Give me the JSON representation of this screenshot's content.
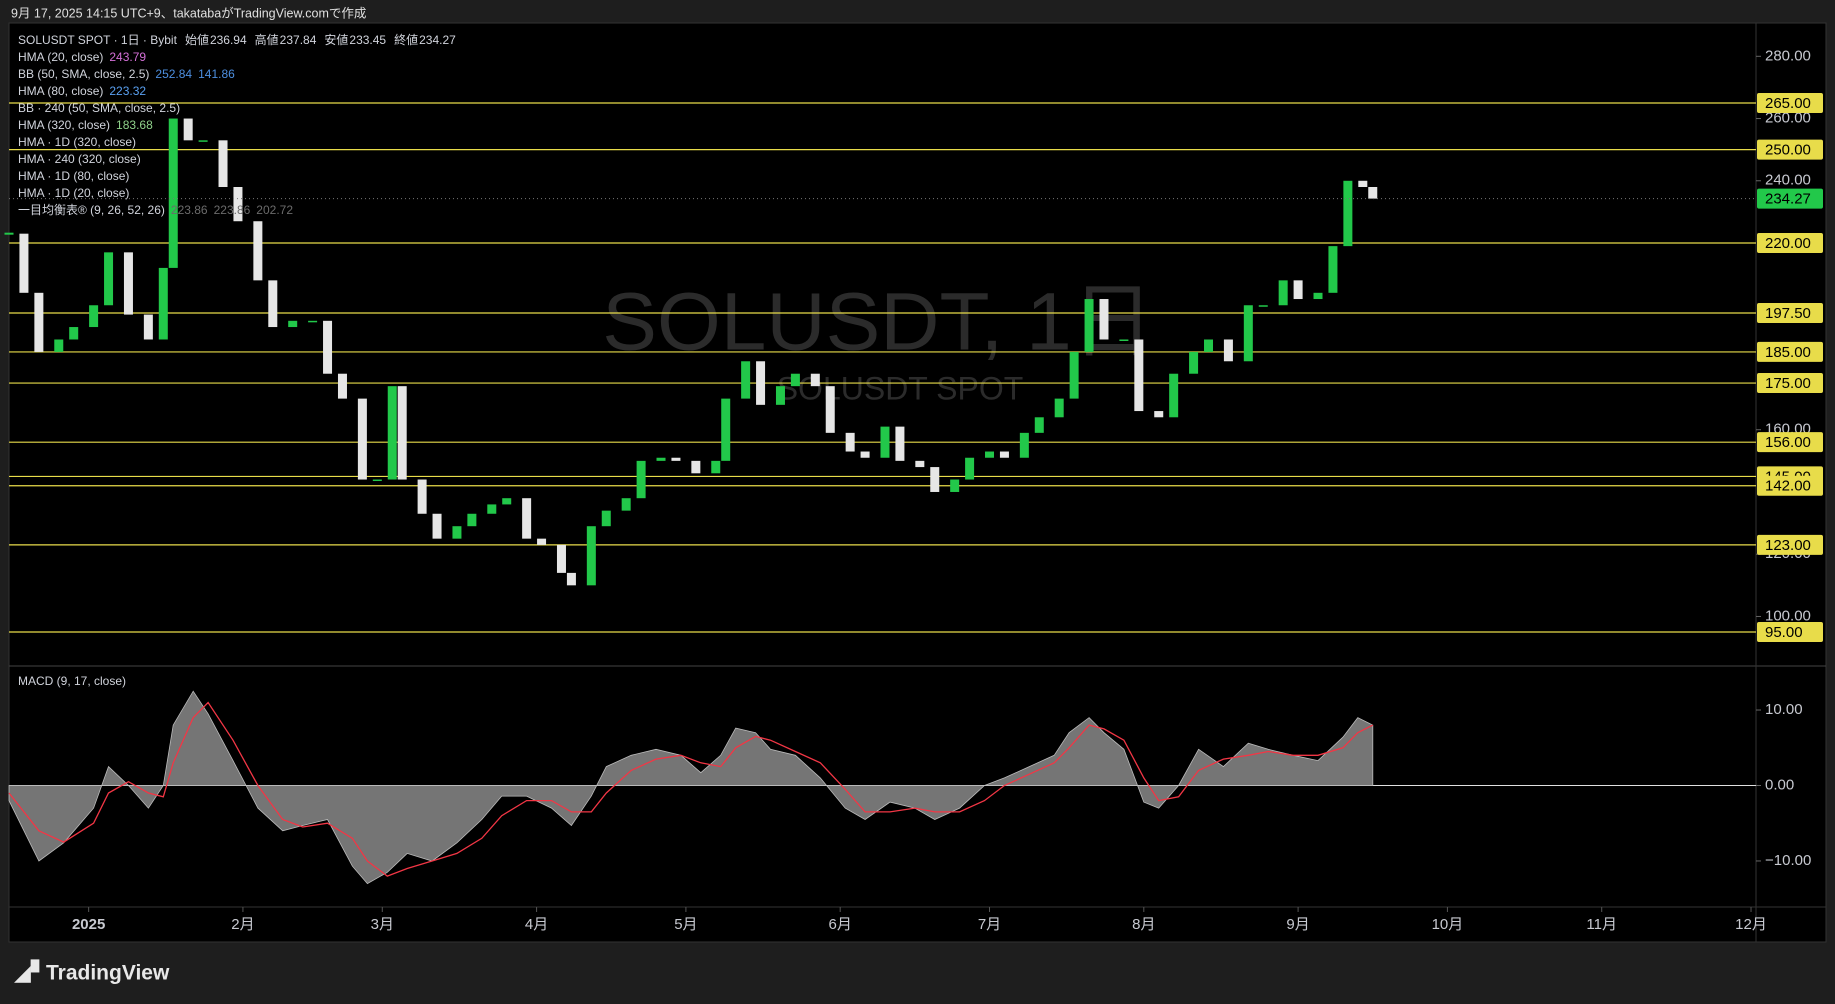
{
  "header": "9月 17, 2025 14:15 UTC+9、takatabaがTradingView.comで作成",
  "footer": "TradingView",
  "watermark": {
    "title": "SOLUSDT, 1日",
    "subtitle": "SOLUSDT SPOT"
  },
  "chart_data": [
    {
      "type": "candlestick",
      "title": "SOLUSDT SPOT · 1日 · Bybit",
      "ohlc": [
        {
          "label": "始値",
          "value": 236.94
        },
        {
          "label": "高値",
          "value": 237.84
        },
        {
          "label": "安値",
          "value": 233.45
        },
        {
          "label": "終値",
          "value": 234.27
        }
      ],
      "legend": [
        {
          "text": "HMA (20, close)",
          "color": "#d36fd6",
          "values": [
            243.79
          ]
        },
        {
          "text": "BB (50, SMA, close, 2.5)",
          "color": "#4d8fe0",
          "values": [
            252.84,
            141.86
          ]
        },
        {
          "text": "HMA (80, close)",
          "color": "#5aa0f0",
          "values": [
            223.32
          ]
        },
        {
          "text": "BB · 240 (50, SMA, close, 2.5)",
          "color": "#d1d4dc",
          "values": []
        },
        {
          "text": "HMA (320, close)",
          "color": "#8fd18a",
          "values": [
            183.68
          ]
        },
        {
          "text": "HMA · 1D (320, close)",
          "color": "#d1d4dc",
          "values": []
        },
        {
          "text": "HMA · 240 (320, close)",
          "color": "#d1d4dc",
          "values": []
        },
        {
          "text": "HMA · 1D (80, close)",
          "color": "#d1d4dc",
          "values": []
        },
        {
          "text": "HMA · 1D (20, close)",
          "color": "#d1d4dc",
          "values": []
        },
        {
          "text": "一目均衡表® (9, 26, 52, 26)",
          "color": "#6b6b6b",
          "values": [
            223.86,
            223.86,
            202.72
          ]
        }
      ],
      "x": [
        -16,
        -13,
        -10,
        -6,
        -3,
        1,
        4,
        8,
        12,
        15,
        17,
        20,
        23,
        27,
        30,
        34,
        37,
        41,
        45,
        48,
        51,
        55,
        58,
        61,
        63,
        67,
        70,
        74,
        77,
        81,
        84,
        88,
        91,
        95,
        97,
        101,
        104,
        108,
        111,
        115,
        118,
        122,
        126,
        128,
        132,
        135,
        139,
        142,
        146,
        149,
        153,
        156,
        160,
        163,
        167,
        170,
        174,
        177,
        181,
        184,
        188,
        191,
        195,
        198,
        201,
        204,
        208,
        211,
        215,
        218,
        222,
        225,
        229,
        233,
        236,
        240,
        243,
        247,
        250,
        253,
        256,
        258
      ],
      "series": [
        {
          "color_up": "#22c84a",
          "color_down": "#e6e6e6",
          "values": [
            223,
            204,
            185,
            189,
            193,
            200,
            217,
            197,
            189,
            212,
            260,
            253,
            253,
            238,
            227,
            208,
            193,
            195,
            195,
            178,
            170,
            144,
            144,
            174,
            144,
            133,
            125,
            129,
            133,
            136,
            138,
            125,
            123,
            114,
            110,
            129,
            134,
            138,
            150,
            151,
            150,
            146,
            150,
            170,
            182,
            168,
            174,
            178,
            174,
            159,
            153,
            151,
            161,
            150,
            148,
            140,
            144,
            151,
            153,
            151,
            159,
            164,
            170,
            185,
            202,
            189,
            189,
            166,
            164,
            178,
            185,
            189,
            182,
            200,
            200,
            208,
            202,
            204,
            219,
            240,
            238,
            234.27
          ]
        }
      ],
      "xlim": [
        -16,
        335
      ],
      "xticks": [
        {
          "value": 0,
          "label": "2025"
        },
        {
          "value": 31,
          "label": "2月"
        },
        {
          "value": 59,
          "label": "3月"
        },
        {
          "value": 90,
          "label": "4月"
        },
        {
          "value": 120,
          "label": "5月"
        },
        {
          "value": 151,
          "label": "6月"
        },
        {
          "value": 181,
          "label": "7月"
        },
        {
          "value": 212,
          "label": "8月"
        },
        {
          "value": 243,
          "label": "9月"
        },
        {
          "value": 273,
          "label": "10月"
        },
        {
          "value": 304,
          "label": "11月"
        },
        {
          "value": 334,
          "label": "12月"
        }
      ],
      "ylim": [
        84.4,
        290.7
      ],
      "yticks": [
        {
          "value": 280,
          "label": "280.00"
        },
        {
          "value": 260,
          "label": "260.00"
        },
        {
          "value": 240,
          "label": "240.00"
        },
        {
          "value": 160,
          "label": "160.00"
        },
        {
          "value": 120,
          "label": "120.00"
        },
        {
          "value": 100,
          "label": "100.00"
        }
      ],
      "levels": [
        {
          "value": 265,
          "label": "265.00"
        },
        {
          "value": 250,
          "label": "250.00"
        },
        {
          "value": 220,
          "label": "220.00"
        },
        {
          "value": 197.5,
          "label": "197.50"
        },
        {
          "value": 185,
          "label": "185.00"
        },
        {
          "value": 175,
          "label": "175.00"
        },
        {
          "value": 156,
          "label": "156.00"
        },
        {
          "value": 145,
          "label": "145.00"
        },
        {
          "value": 142,
          "label": "142.00"
        },
        {
          "value": 123,
          "label": "123.00"
        },
        {
          "value": 95,
          "label": "95.00"
        }
      ],
      "level_color": "#e8dc4a",
      "last_price": 234.27,
      "last_color": "#22c84a",
      "grid": false
    },
    {
      "type": "macd",
      "title": "MACD (9, 17, close)",
      "x": [
        -16,
        -10,
        -5,
        1,
        4,
        8,
        12,
        15,
        17,
        21,
        24,
        29,
        34,
        39,
        43,
        48,
        53,
        56,
        60,
        64,
        69,
        74,
        79,
        83,
        88,
        93,
        97,
        101,
        104,
        109,
        114,
        119,
        123,
        127,
        130,
        134,
        137,
        142,
        147,
        152,
        156,
        161,
        166,
        170,
        175,
        180,
        184,
        189,
        194,
        197,
        201,
        204,
        208,
        212,
        215,
        219,
        223,
        228,
        233,
        237,
        242,
        247,
        252,
        255,
        258
      ],
      "series": [
        {
          "kind": "area",
          "color": "#8a8a8a",
          "values": [
            -2,
            -10,
            -7.6,
            -3,
            2.5,
            0,
            -3,
            0,
            8,
            12.5,
            9.5,
            3.3,
            -3,
            -6,
            -5.3,
            -4.5,
            -10.7,
            -13,
            -11.5,
            -9,
            -10,
            -7.6,
            -4.5,
            -1.4,
            -1.4,
            -3,
            -5.3,
            -1.4,
            2.5,
            4,
            4.8,
            4,
            1.7,
            4,
            7.6,
            7,
            4.8,
            4,
            1,
            -3,
            -4.5,
            -2.2,
            -3,
            -4.5,
            -3,
            0,
            1,
            2.5,
            4,
            7,
            9,
            7,
            4.8,
            -2.2,
            -3,
            0,
            4.8,
            2.5,
            5.6,
            4.8,
            4,
            3.3,
            6.4,
            9,
            8
          ]
        },
        {
          "kind": "line",
          "color": "#f23645",
          "values": [
            -1,
            -6,
            -7.5,
            -5,
            -1,
            0.5,
            -1,
            -1.5,
            3,
            9,
            11,
            6,
            0,
            -4.5,
            -5.5,
            -5,
            -7,
            -10,
            -12,
            -11,
            -10,
            -9,
            -7,
            -4,
            -2,
            -2,
            -3.5,
            -3.5,
            -1,
            2,
            3.5,
            4,
            3,
            2.5,
            5,
            6.5,
            6,
            4.5,
            3,
            -0.5,
            -3.5,
            -3.5,
            -3,
            -3.5,
            -3.5,
            -2,
            0,
            1.5,
            3,
            5,
            8,
            7.5,
            6,
            1,
            -2,
            -1.5,
            2,
            3.5,
            4,
            4.5,
            4,
            4,
            5,
            7,
            8
          ]
        }
      ],
      "xlim": [
        -16,
        335
      ],
      "ylim": [
        -16.1,
        15.7
      ],
      "yticks": [
        {
          "value": 10,
          "label": "10.00"
        },
        {
          "value": 0,
          "label": "0.00"
        },
        {
          "value": -10,
          "label": "−10.00"
        }
      ],
      "zero_line": 0
    }
  ]
}
